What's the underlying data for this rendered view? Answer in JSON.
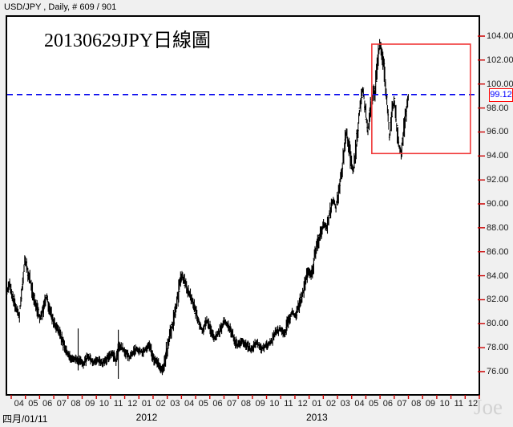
{
  "header": {
    "title": "USD/JPY , Daily, # 609 / 901"
  },
  "chart": {
    "title": "20130629JPY日線圖",
    "footer_left": "四月/01/11",
    "watermark": "Joe",
    "last_price": {
      "label": "99.12",
      "value": 99.12
    },
    "years": [
      {
        "label": "2012",
        "month_index": 9
      },
      {
        "label": "2013",
        "month_index": 21
      }
    ],
    "colors": {
      "bars": "#000000",
      "axis_tick": "#cc0000",
      "dashed_line": "#0000ee",
      "highlight_box": "#f03838",
      "tag_border": "#ff0000",
      "tag_text": "#0000ff",
      "watermark": "#d2d2d2",
      "plot_border": "#000000",
      "plot_bg": "#ffffff",
      "page_bg": "#f0f0f0"
    }
  },
  "chart_data": {
    "type": "ohlc",
    "title": "20130629JPY日線圖",
    "instrument": "USD/JPY",
    "timeframe": "Daily",
    "xlabel": "",
    "ylabel": "",
    "ylim": [
      76.0,
      104.0
    ],
    "y_tick_step": 2.0,
    "y_tick_labels": [
      "104.00",
      "102.00",
      "100.00",
      "98.00",
      "96.00",
      "94.00",
      "92.00",
      "90.00",
      "88.00",
      "86.00",
      "84.00",
      "82.00",
      "80.00",
      "78.00",
      "76.00"
    ],
    "x_month_labels": [
      "04",
      "05",
      "06",
      "07",
      "08",
      "09",
      "10",
      "11",
      "12",
      "01",
      "02",
      "03",
      "04",
      "05",
      "06",
      "07",
      "08",
      "09",
      "10",
      "11",
      "12",
      "01",
      "02",
      "03",
      "04",
      "05",
      "06",
      "07",
      "08",
      "09",
      "10",
      "11",
      "12"
    ],
    "x_months_total": 33,
    "grid": false,
    "legend": false,
    "last_close": 99.12,
    "dashed_level": 99.12,
    "highlight_box": {
      "t0": 25.42,
      "t1": 32.37,
      "p_low": 94.2,
      "p_high": 103.33
    },
    "series": [
      {
        "name": "USD/JPY close path (t = months since 2011-04-01)",
        "anchors": [
          [
            -0.34,
            82.6
          ],
          [
            -0.11,
            83.3
          ],
          [
            0.11,
            82.1
          ],
          [
            0.34,
            81.4
          ],
          [
            0.56,
            80.6
          ],
          [
            0.73,
            82.6
          ],
          [
            0.96,
            85.5
          ],
          [
            1.19,
            84.3
          ],
          [
            1.41,
            83.2
          ],
          [
            1.69,
            81.9
          ],
          [
            2.03,
            80.4
          ],
          [
            2.26,
            81.1
          ],
          [
            2.49,
            82.3
          ],
          [
            2.77,
            80.9
          ],
          [
            3.05,
            80.0
          ],
          [
            3.33,
            79.4
          ],
          [
            3.62,
            78.6
          ],
          [
            3.9,
            77.6
          ],
          [
            4.18,
            77.2
          ],
          [
            4.6,
            77.0
          ],
          [
            4.86,
            76.9
          ],
          [
            5.08,
            76.6
          ],
          [
            5.42,
            77.3
          ],
          [
            5.76,
            76.8
          ],
          [
            6.1,
            77.0
          ],
          [
            6.44,
            76.7
          ],
          [
            6.78,
            77.1
          ],
          [
            7.12,
            77.5
          ],
          [
            7.4,
            76.9
          ],
          [
            7.62,
            78.2
          ],
          [
            7.97,
            77.7
          ],
          [
            8.36,
            77.2
          ],
          [
            8.81,
            77.9
          ],
          [
            9.27,
            77.6
          ],
          [
            9.72,
            78.2
          ],
          [
            10.06,
            77.1
          ],
          [
            10.4,
            76.6
          ],
          [
            10.68,
            76.1
          ],
          [
            11.07,
            78.4
          ],
          [
            11.47,
            80.4
          ],
          [
            11.75,
            82.4
          ],
          [
            12.03,
            84.1
          ],
          [
            12.37,
            83.0
          ],
          [
            12.66,
            82.2
          ],
          [
            12.94,
            81.2
          ],
          [
            13.22,
            80.1
          ],
          [
            13.5,
            79.4
          ],
          [
            13.79,
            80.3
          ],
          [
            14.07,
            79.5
          ],
          [
            14.35,
            78.8
          ],
          [
            14.69,
            79.4
          ],
          [
            15.03,
            80.2
          ],
          [
            15.31,
            79.8
          ],
          [
            15.59,
            79.1
          ],
          [
            15.93,
            78.2
          ],
          [
            16.27,
            78.6
          ],
          [
            16.61,
            78.2
          ],
          [
            16.95,
            77.8
          ],
          [
            17.29,
            78.5
          ],
          [
            17.63,
            77.9
          ],
          [
            17.97,
            78.2
          ],
          [
            18.31,
            78.4
          ],
          [
            18.64,
            79.2
          ],
          [
            18.98,
            79.6
          ],
          [
            19.27,
            79.1
          ],
          [
            19.55,
            80.3
          ],
          [
            19.83,
            81.0
          ],
          [
            20.06,
            80.5
          ],
          [
            20.28,
            81.5
          ],
          [
            20.51,
            82.3
          ],
          [
            20.73,
            83.4
          ],
          [
            20.96,
            84.5
          ],
          [
            21.13,
            84.0
          ],
          [
            21.36,
            85.3
          ],
          [
            21.58,
            86.6
          ],
          [
            21.81,
            87.5
          ],
          [
            22.03,
            88.3
          ],
          [
            22.26,
            88.0
          ],
          [
            22.49,
            89.5
          ],
          [
            22.71,
            90.3
          ],
          [
            22.88,
            89.7
          ],
          [
            23.11,
            91.0
          ],
          [
            23.28,
            92.5
          ],
          [
            23.45,
            94.0
          ],
          [
            23.62,
            96.2
          ],
          [
            23.79,
            95.0
          ],
          [
            23.95,
            93.5
          ],
          [
            24.12,
            92.8
          ],
          [
            24.29,
            94.5
          ],
          [
            24.46,
            96.5
          ],
          [
            24.63,
            98.5
          ],
          [
            24.8,
            99.6
          ],
          [
            24.97,
            98.0
          ],
          [
            25.14,
            96.0
          ],
          [
            25.31,
            97.8
          ],
          [
            25.48,
            99.0
          ],
          [
            25.65,
            99.5
          ],
          [
            25.82,
            101.5
          ],
          [
            25.99,
            103.5
          ],
          [
            26.16,
            102.2
          ],
          [
            26.33,
            101.0
          ],
          [
            26.5,
            98.3
          ],
          [
            26.67,
            95.6
          ],
          [
            26.84,
            97.5
          ],
          [
            27.01,
            98.8
          ],
          [
            27.18,
            96.5
          ],
          [
            27.35,
            94.8
          ],
          [
            27.51,
            94.1
          ],
          [
            27.68,
            96.2
          ],
          [
            27.85,
            97.8
          ],
          [
            28.0,
            98.9
          ]
        ]
      }
    ],
    "spike_bars": [
      {
        "t": 4.72,
        "low": 76.1,
        "high": 79.6
      },
      {
        "t": 7.55,
        "low": 75.4,
        "high": 79.5
      }
    ]
  }
}
